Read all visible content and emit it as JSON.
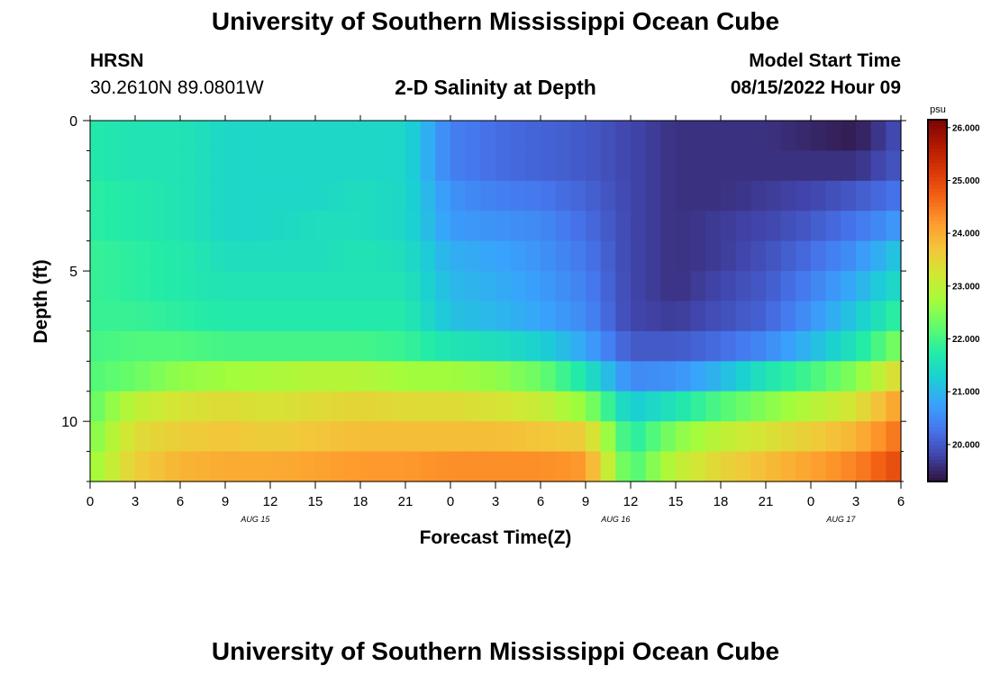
{
  "header": {
    "title": "University of Southern Mississippi Ocean Cube",
    "station": "HRSN",
    "coords": "30.2610N  89.0801W",
    "subtitle": "2-D Salinity at Depth",
    "model_start_label": "Model Start Time",
    "model_start_value": "08/15/2022 Hour 09"
  },
  "footer": {
    "title": "University of Southern Mississippi Ocean Cube"
  },
  "chart_data": {
    "type": "heatmap",
    "title": "2-D Salinity at Depth",
    "xlabel": "Forecast Time(Z)",
    "ylabel": "Depth (ft)",
    "x_tick_labels": [
      "0",
      "3",
      "6",
      "9",
      "12",
      "15",
      "18",
      "21",
      "0",
      "3",
      "6",
      "9",
      "12",
      "15",
      "18",
      "21",
      "0",
      "3",
      "6"
    ],
    "x_range_hours": [
      0,
      54
    ],
    "date_labels": [
      {
        "hour": 11,
        "label": "AUG 15"
      },
      {
        "hour": 35,
        "label": "AUG 16"
      },
      {
        "hour": 50,
        "label": "AUG 17"
      }
    ],
    "y_tick_labels": [
      "0",
      "5",
      "10"
    ],
    "ylim": [
      0,
      12
    ],
    "y_inverted": true,
    "colorbar": {
      "unit": "psu",
      "min": 19.3,
      "max": 26.15,
      "ticks": [
        "26.000",
        "25.000",
        "24.000",
        "23.000",
        "22.000",
        "21.000",
        "20.000"
      ],
      "colors": [
        "#30123b",
        "#4145ab",
        "#4675ed",
        "#39a2fc",
        "#1bcfd4",
        "#24eca6",
        "#61fc6c",
        "#a4fc3b",
        "#d1e834",
        "#f3c63a",
        "#fe9b2d",
        "#f36315",
        "#d93806",
        "#b11901",
        "#7a0403"
      ]
    },
    "depth_levels_ft": [
      0.5,
      1.5,
      2.5,
      3.5,
      4.5,
      5.5,
      6.5,
      7.5,
      8.5,
      9.5,
      10.5,
      11.5
    ],
    "time_hours_every_3": [
      0,
      3,
      6,
      9,
      12,
      15,
      18,
      21,
      24,
      27,
      30,
      33,
      36,
      39,
      42,
      45,
      48,
      51,
      54
    ],
    "values_psu": [
      [
        21.7,
        21.6,
        21.6,
        21.4,
        21.4,
        21.4,
        21.4,
        21.4,
        20.4,
        20.2,
        20.1,
        20.0,
        19.8,
        19.6,
        19.6,
        19.6,
        19.5,
        19.4,
        19.9
      ],
      [
        21.7,
        21.6,
        21.6,
        21.4,
        21.4,
        21.4,
        21.4,
        21.4,
        20.4,
        20.2,
        20.1,
        20.0,
        19.8,
        19.6,
        19.6,
        19.6,
        19.6,
        19.6,
        20.0
      ],
      [
        21.8,
        21.7,
        21.6,
        21.4,
        21.4,
        21.4,
        21.5,
        21.4,
        20.6,
        20.4,
        20.3,
        20.1,
        19.8,
        19.6,
        19.6,
        19.7,
        19.8,
        20.0,
        20.3
      ],
      [
        21.8,
        21.7,
        21.6,
        21.4,
        21.4,
        21.5,
        21.5,
        21.4,
        20.7,
        20.6,
        20.5,
        20.2,
        19.8,
        19.6,
        19.7,
        19.8,
        20.0,
        20.3,
        20.7
      ],
      [
        21.9,
        21.8,
        21.7,
        21.5,
        21.5,
        21.5,
        21.6,
        21.5,
        20.9,
        20.8,
        20.6,
        20.3,
        19.8,
        19.6,
        19.7,
        19.9,
        20.2,
        20.6,
        21.2
      ],
      [
        21.9,
        21.8,
        21.7,
        21.6,
        21.6,
        21.6,
        21.6,
        21.6,
        21.0,
        20.9,
        20.7,
        20.4,
        19.8,
        19.6,
        19.8,
        20.0,
        20.4,
        20.9,
        21.5
      ],
      [
        21.9,
        21.9,
        21.8,
        21.7,
        21.7,
        21.7,
        21.7,
        21.7,
        21.1,
        21.0,
        20.8,
        20.5,
        19.8,
        19.7,
        19.9,
        20.1,
        20.6,
        21.2,
        21.9
      ],
      [
        22.0,
        22.1,
        22.1,
        22.0,
        22.0,
        22.0,
        22.0,
        21.9,
        21.6,
        21.5,
        21.3,
        20.8,
        20.0,
        20.0,
        20.2,
        20.5,
        21.0,
        21.6,
        22.5
      ],
      [
        22.1,
        22.3,
        22.6,
        22.7,
        22.8,
        22.9,
        22.9,
        22.7,
        22.7,
        22.6,
        22.3,
        21.6,
        20.5,
        20.6,
        21.0,
        21.6,
        22.0,
        22.5,
        23.5
      ],
      [
        22.2,
        23.0,
        23.3,
        23.4,
        23.3,
        23.4,
        23.5,
        23.4,
        23.4,
        23.3,
        23.1,
        22.6,
        21.2,
        21.6,
        22.1,
        22.5,
        22.9,
        23.3,
        24.2
      ],
      [
        22.4,
        23.4,
        23.6,
        23.7,
        23.6,
        23.7,
        23.8,
        23.8,
        23.8,
        23.8,
        23.7,
        23.6,
        21.7,
        22.5,
        23.0,
        23.3,
        23.6,
        23.9,
        24.6
      ],
      [
        22.6,
        23.6,
        23.9,
        24.0,
        24.0,
        24.1,
        24.2,
        24.2,
        24.3,
        24.3,
        24.3,
        24.2,
        22.0,
        23.0,
        23.5,
        23.8,
        24.1,
        24.4,
        25.0
      ]
    ]
  }
}
